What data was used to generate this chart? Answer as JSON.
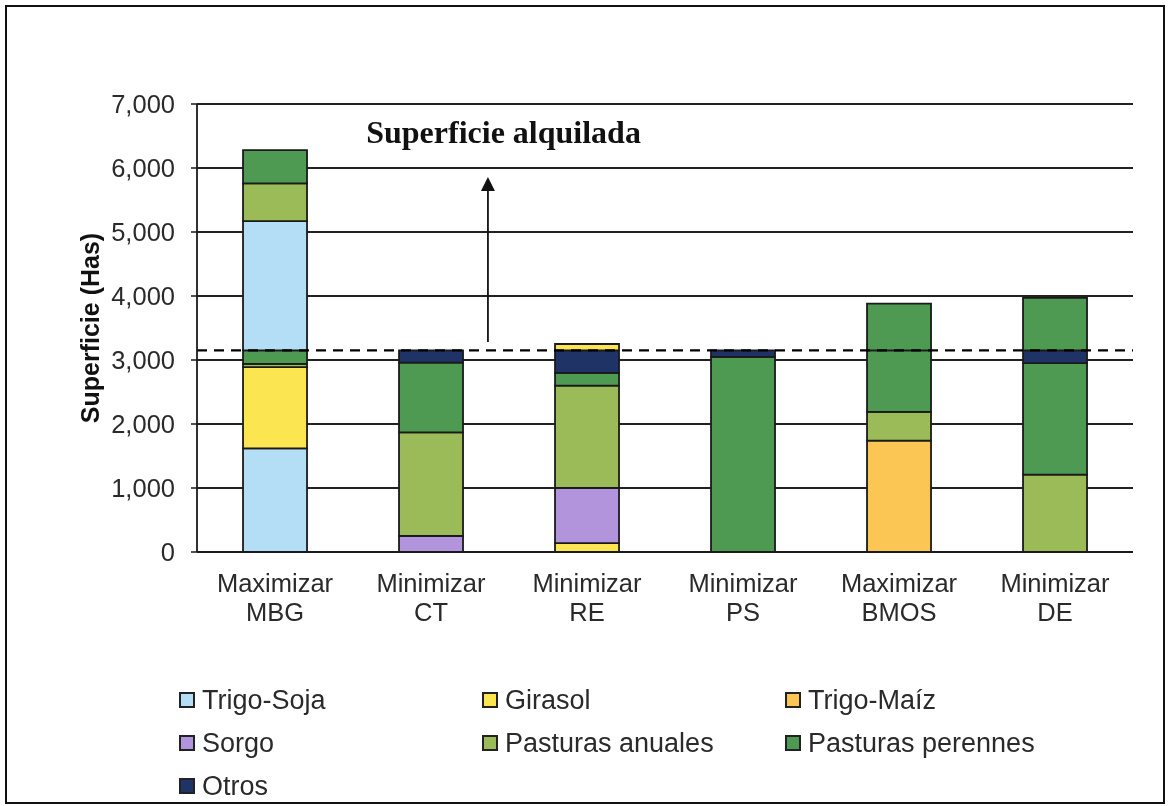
{
  "chart_data": {
    "type": "bar",
    "stacked": true,
    "categories": [
      "Maximizar MBG",
      "Minimizar CT",
      "Minimizar RE",
      "Minimizar PS",
      "Maximizar BMOS",
      "Minimizar DE"
    ],
    "series": [
      {
        "name": "Trigo-Soja",
        "color": "#b4def5",
        "values": [
          1620,
          null,
          null,
          null,
          null,
          null
        ]
      },
      {
        "name": "Girasol",
        "color": "#fbe550",
        "values": [
          1270,
          null,
          140,
          null,
          null,
          null
        ]
      },
      {
        "name": "Trigo-Maíz",
        "color": "#fcc655",
        "values": [
          null,
          null,
          null,
          null,
          1740,
          null
        ]
      },
      {
        "name": "Sorgo",
        "color": "#b294dc",
        "values": [
          null,
          250,
          860,
          null,
          null,
          null
        ]
      },
      {
        "name": "Pasturas anuales",
        "color": "#9bbb59",
        "values": [
          50,
          1620,
          1600,
          null,
          450,
          1210
        ]
      },
      {
        "name": "Pasturas perennes",
        "color": "#4f9a53",
        "values": [
          210,
          1090,
          200,
          3050,
          960,
          1740
        ]
      },
      {
        "name": "Otros",
        "color": "#1f3366",
        "values": [
          null,
          190,
          350,
          100,
          null,
          200
        ]
      },
      {
        "color": "#b4def5",
        "values": [
          2020,
          null,
          null,
          null,
          null,
          null
        ]
      },
      {
        "color": "#fbe550",
        "values": [
          null,
          null,
          100,
          null,
          null,
          null
        ]
      },
      {
        "color": "#9bbb59",
        "values": [
          590,
          null,
          null,
          null,
          null,
          null
        ]
      },
      {
        "color": "#4f9a53",
        "values": [
          520,
          null,
          null,
          null,
          730,
          820
        ]
      }
    ],
    "ylabel": "Superficie (Has)",
    "ylim": [
      0,
      7000
    ],
    "yticks": [
      0,
      {
        "value": 1000,
        "label": "1,000"
      },
      {
        "value": 2000,
        "label": "2,000"
      },
      {
        "value": 3000,
        "label": "3,000"
      },
      {
        "value": 4000,
        "label": "4,000"
      },
      {
        "value": 5000,
        "label": "5,000"
      },
      {
        "value": 6000,
        "label": "6,000"
      },
      {
        "value": 7000,
        "label": "7,000"
      }
    ],
    "grid": "y",
    "legend": "bottom",
    "ref_lines": [
      {
        "axis": "y",
        "value": 3150,
        "color": "#000000",
        "line_style": "dashed"
      }
    ],
    "annotations": [
      "Superficie alquilada"
    ]
  }
}
